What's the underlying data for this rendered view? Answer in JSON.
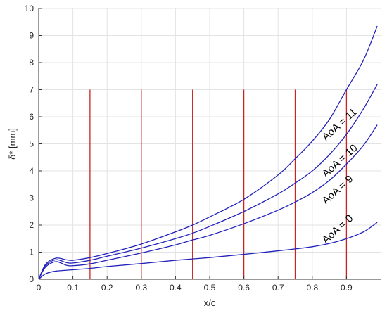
{
  "chart_data": {
    "type": "line",
    "xlabel": "x/c",
    "ylabel": "δ* [mm]",
    "xlim": [
      0,
      1.0
    ],
    "ylim": [
      0,
      10
    ],
    "xticks": [
      "0",
      "0.1",
      "0.2",
      "0.3",
      "0.4",
      "0.5",
      "0.6",
      "0.7",
      "0.8",
      "0.9"
    ],
    "yticks": [
      "0",
      "1",
      "2",
      "3",
      "4",
      "5",
      "6",
      "7",
      "8",
      "9",
      "10"
    ],
    "grid": true,
    "series": [
      {
        "name": "AoA = 11",
        "x": [
          0,
          0.02,
          0.05,
          0.08,
          0.1,
          0.15,
          0.2,
          0.3,
          0.4,
          0.45,
          0.5,
          0.6,
          0.7,
          0.75,
          0.8,
          0.85,
          0.9,
          0.95,
          0.99
        ],
        "y": [
          0,
          0.55,
          0.78,
          0.72,
          0.7,
          0.8,
          0.95,
          1.3,
          1.75,
          2.0,
          2.3,
          2.95,
          3.85,
          4.45,
          5.1,
          5.9,
          7.0,
          8.1,
          9.35
        ]
      },
      {
        "name": "AoA = 10",
        "x": [
          0,
          0.02,
          0.05,
          0.08,
          0.1,
          0.15,
          0.2,
          0.3,
          0.4,
          0.45,
          0.5,
          0.6,
          0.7,
          0.75,
          0.8,
          0.85,
          0.9,
          0.95,
          0.99
        ],
        "y": [
          0,
          0.5,
          0.72,
          0.62,
          0.6,
          0.7,
          0.85,
          1.15,
          1.5,
          1.7,
          1.95,
          2.5,
          3.15,
          3.55,
          4.0,
          4.6,
          5.35,
          6.3,
          7.2
        ]
      },
      {
        "name": "AoA = 9",
        "x": [
          0,
          0.02,
          0.05,
          0.08,
          0.1,
          0.15,
          0.2,
          0.3,
          0.4,
          0.45,
          0.5,
          0.6,
          0.7,
          0.75,
          0.8,
          0.85,
          0.9,
          0.95,
          0.99
        ],
        "y": [
          0,
          0.45,
          0.65,
          0.52,
          0.5,
          0.57,
          0.7,
          0.97,
          1.27,
          1.45,
          1.62,
          2.05,
          2.55,
          2.85,
          3.2,
          3.65,
          4.25,
          4.95,
          5.7
        ]
      },
      {
        "name": "AoA = 0",
        "x": [
          0,
          0.02,
          0.05,
          0.1,
          0.15,
          0.2,
          0.3,
          0.4,
          0.5,
          0.6,
          0.7,
          0.75,
          0.8,
          0.85,
          0.9,
          0.95,
          0.99
        ],
        "y": [
          0,
          0.2,
          0.3,
          0.35,
          0.4,
          0.47,
          0.58,
          0.7,
          0.8,
          0.92,
          1.05,
          1.12,
          1.2,
          1.32,
          1.5,
          1.75,
          2.1
        ]
      }
    ],
    "vertical_lines": {
      "x": [
        0.15,
        0.3,
        0.45,
        0.6,
        0.75,
        0.9
      ],
      "y_top": 7,
      "color": "#cc2222"
    },
    "annotations": [
      {
        "text": "AoA = 11",
        "x": 0.84,
        "y": 5.1
      },
      {
        "text": "AoA = 10",
        "x": 0.84,
        "y": 3.75
      },
      {
        "text": "AoA = 9",
        "x": 0.84,
        "y": 2.75
      },
      {
        "text": "AoA = 0",
        "x": 0.84,
        "y": 1.3
      }
    ],
    "line_color": "#2222bb"
  }
}
